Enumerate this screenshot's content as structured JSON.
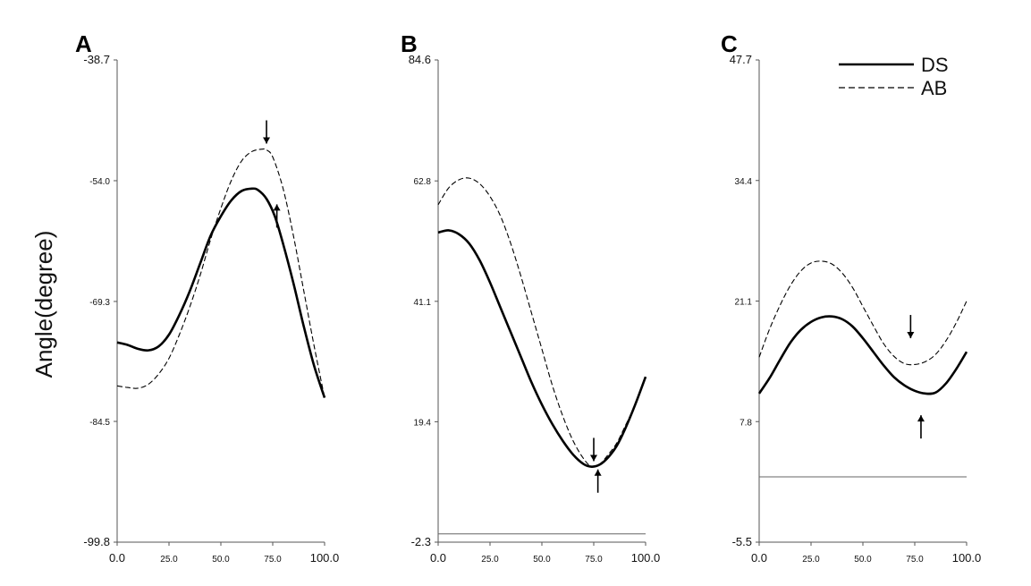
{
  "figure": {
    "ylabel": "Angle(degree)",
    "legend": [
      {
        "name": "DS",
        "style": "solid"
      },
      {
        "name": "AB",
        "style": "dashed"
      }
    ]
  },
  "chart_data": [
    {
      "panel": "A",
      "type": "line",
      "ylim": [
        -99.8,
        -38.7
      ],
      "xlim": [
        0,
        100
      ],
      "yticks": [
        "-38.7",
        "-54.0",
        "-69.3",
        "-84.5",
        "-99.8"
      ],
      "xticks": [
        "0.0",
        "25.0",
        "50.0",
        "75.0",
        "100.0"
      ],
      "baseline": null,
      "series": [
        {
          "name": "DS",
          "style": "solid",
          "x": [
            0,
            5,
            10,
            15,
            20,
            25,
            30,
            35,
            40,
            45,
            50,
            55,
            60,
            65,
            68,
            72,
            76,
            80,
            85,
            90,
            95,
            100
          ],
          "y": [
            -74.5,
            -74.8,
            -75.3,
            -75.5,
            -75.0,
            -73.5,
            -71.0,
            -68.0,
            -64.5,
            -61.0,
            -58.5,
            -56.5,
            -55.3,
            -55.0,
            -55.2,
            -56.3,
            -58.5,
            -62.0,
            -67.0,
            -72.5,
            -77.5,
            -81.5
          ]
        },
        {
          "name": "AB",
          "style": "dashed",
          "x": [
            0,
            5,
            10,
            15,
            20,
            25,
            30,
            35,
            40,
            45,
            50,
            55,
            60,
            65,
            70,
            72,
            75,
            80,
            85,
            90,
            95,
            100
          ],
          "y": [
            -80.0,
            -80.2,
            -80.3,
            -79.8,
            -78.5,
            -76.5,
            -73.5,
            -70.0,
            -66.0,
            -61.5,
            -57.5,
            -54.0,
            -51.5,
            -50.3,
            -50.0,
            -50.1,
            -51.0,
            -55.0,
            -61.0,
            -68.0,
            -75.0,
            -81.5
          ]
        }
      ],
      "arrows": [
        {
          "x": 72,
          "y": -49.3,
          "direction": "down",
          "series": "AB"
        },
        {
          "x": 77,
          "y": -57.0,
          "direction": "up",
          "series": "DS"
        }
      ]
    },
    {
      "panel": "B",
      "type": "line",
      "ylim": [
        -2.3,
        84.6
      ],
      "xlim": [
        0,
        100
      ],
      "yticks": [
        "84.6",
        "62.8",
        "41.1",
        "19.4",
        "-2.3"
      ],
      "xticks": [
        "0.0",
        "25.0",
        "50.0",
        "75.0",
        "100.0"
      ],
      "baseline": -0.8,
      "series": [
        {
          "name": "DS",
          "style": "solid",
          "x": [
            0,
            5,
            10,
            15,
            20,
            25,
            30,
            35,
            40,
            45,
            50,
            55,
            60,
            65,
            70,
            74,
            78,
            82,
            86,
            90,
            95,
            100
          ],
          "y": [
            53.5,
            53.9,
            53.2,
            51.5,
            48.5,
            44.5,
            40.0,
            35.5,
            31.0,
            26.5,
            22.5,
            19.0,
            16.0,
            13.5,
            11.8,
            11.3,
            11.7,
            13.0,
            15.0,
            18.0,
            22.5,
            27.5
          ]
        },
        {
          "name": "AB",
          "style": "dashed",
          "x": [
            0,
            5,
            10,
            15,
            20,
            25,
            30,
            35,
            40,
            45,
            50,
            55,
            60,
            65,
            70,
            74,
            78,
            82,
            86,
            90,
            95,
            100
          ],
          "y": [
            58.5,
            61.5,
            63.0,
            63.3,
            62.3,
            60.0,
            56.5,
            51.5,
            45.5,
            39.0,
            32.5,
            26.0,
            20.5,
            16.0,
            12.8,
            11.3,
            11.8,
            13.5,
            15.5,
            18.5,
            22.5,
            27.5
          ]
        }
      ],
      "arrows": [
        {
          "x": 75,
          "y": 12.3,
          "direction": "down",
          "series": "AB"
        },
        {
          "x": 77,
          "y": 10.8,
          "direction": "up",
          "series": "DS"
        }
      ]
    },
    {
      "panel": "C",
      "type": "line",
      "ylim": [
        -5.5,
        47.7
      ],
      "xlim": [
        0,
        100
      ],
      "yticks": [
        "47.7",
        "34.4",
        "21.1",
        "7.8",
        "-5.5"
      ],
      "xticks": [
        "0.0",
        "25.0",
        "50.0",
        "75.0",
        "100.0"
      ],
      "baseline": 1.7,
      "series": [
        {
          "name": "DS",
          "style": "solid",
          "x": [
            0,
            5,
            10,
            15,
            20,
            25,
            30,
            35,
            40,
            45,
            50,
            55,
            60,
            65,
            70,
            75,
            80,
            85,
            90,
            95,
            100
          ],
          "y": [
            10.9,
            12.6,
            14.6,
            16.5,
            17.9,
            18.8,
            19.3,
            19.4,
            19.1,
            18.3,
            17.0,
            15.5,
            14.0,
            12.7,
            11.8,
            11.2,
            10.9,
            11.0,
            12.0,
            13.6,
            15.5
          ]
        },
        {
          "name": "AB",
          "style": "dashed",
          "x": [
            0,
            5,
            10,
            15,
            20,
            25,
            30,
            35,
            40,
            45,
            50,
            55,
            60,
            65,
            70,
            75,
            80,
            85,
            90,
            95,
            100
          ],
          "y": [
            14.9,
            18.0,
            20.6,
            22.8,
            24.4,
            25.3,
            25.5,
            25.2,
            24.2,
            22.6,
            20.5,
            18.4,
            16.4,
            15.0,
            14.2,
            14.1,
            14.4,
            15.2,
            16.7,
            18.7,
            21.1
          ]
        }
      ],
      "arrows": [
        {
          "x": 73,
          "y": 17.0,
          "direction": "down",
          "series": "AB"
        },
        {
          "x": 78,
          "y": 8.5,
          "direction": "up",
          "series": "DS"
        }
      ]
    }
  ]
}
